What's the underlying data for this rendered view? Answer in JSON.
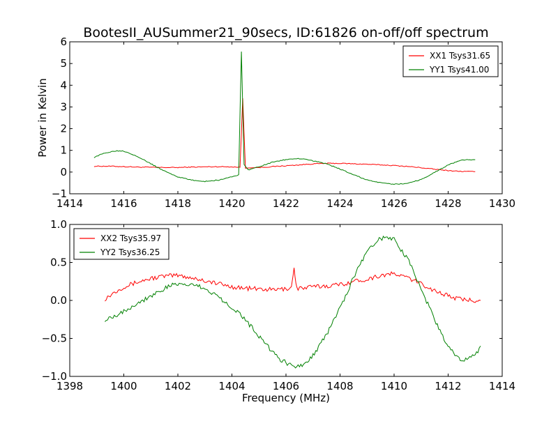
{
  "figure": {
    "title": "BootesII_AUSummer21_90secs, ID:61826 on-off/off spectrum"
  },
  "colors": {
    "xx": "#ff0000",
    "yy": "#008000",
    "axes": "#000000",
    "background": "#ffffff"
  },
  "chart_data": [
    {
      "type": "line",
      "title": "BootesII_AUSummer21_90secs, ID:61826 on-off/off spectrum",
      "xlabel": "",
      "ylabel": "Power in Kelvin",
      "xlim": [
        1414,
        1430
      ],
      "ylim": [
        -1,
        6
      ],
      "xticks": [
        1414,
        1416,
        1418,
        1420,
        1422,
        1424,
        1426,
        1428,
        1430
      ],
      "yticks": [
        -1,
        0,
        1,
        2,
        3,
        4,
        5,
        6
      ],
      "xtick_labels": [
        "1414",
        "1416",
        "1418",
        "1420",
        "1422",
        "1424",
        "1426",
        "1428",
        "1430"
      ],
      "ytick_labels": [
        "−1",
        "0",
        "1",
        "2",
        "3",
        "4",
        "5",
        "6"
      ],
      "grid": false,
      "legend_position": "top-right",
      "series": [
        {
          "name": "XX1 Tsys31.65",
          "color": "#ff0000",
          "x": [
            1414.9,
            1415.5,
            1416.0,
            1416.5,
            1417.0,
            1417.5,
            1418.0,
            1418.5,
            1419.0,
            1419.5,
            1420.0,
            1420.3,
            1420.4,
            1420.5,
            1421.0,
            1421.5,
            1422.0,
            1422.5,
            1423.0,
            1423.5,
            1424.0,
            1424.5,
            1425.0,
            1425.5,
            1426.0,
            1426.5,
            1427.0,
            1427.5,
            1428.0,
            1428.5,
            1429.0
          ],
          "y": [
            0.27,
            0.27,
            0.25,
            0.23,
            0.22,
            0.21,
            0.21,
            0.23,
            0.24,
            0.25,
            0.24,
            0.22,
            3.4,
            0.18,
            0.21,
            0.25,
            0.29,
            0.33,
            0.38,
            0.4,
            0.4,
            0.38,
            0.36,
            0.33,
            0.3,
            0.26,
            0.2,
            0.13,
            0.07,
            0.03,
            0.02
          ]
        },
        {
          "name": "YY1 Tsys41.00",
          "color": "#008000",
          "x": [
            1414.9,
            1415.3,
            1415.7,
            1416.0,
            1416.5,
            1417.0,
            1417.5,
            1418.0,
            1418.5,
            1419.0,
            1419.5,
            1420.0,
            1420.25,
            1420.35,
            1420.45,
            1420.6,
            1421.0,
            1421.5,
            1422.0,
            1422.5,
            1423.0,
            1423.5,
            1424.0,
            1424.5,
            1425.0,
            1425.5,
            1426.0,
            1426.5,
            1427.0,
            1427.5,
            1428.0,
            1428.5,
            1429.0
          ],
          "y": [
            0.68,
            0.88,
            0.98,
            0.97,
            0.73,
            0.38,
            0.05,
            -0.22,
            -0.37,
            -0.43,
            -0.37,
            -0.22,
            -0.12,
            5.55,
            0.35,
            0.1,
            0.25,
            0.45,
            0.58,
            0.62,
            0.52,
            0.38,
            0.14,
            -0.12,
            -0.36,
            -0.5,
            -0.56,
            -0.52,
            -0.34,
            -0.02,
            0.33,
            0.56,
            0.57
          ]
        }
      ]
    },
    {
      "type": "line",
      "title": "",
      "xlabel": "Frequency (MHz)",
      "ylabel": "",
      "xlim": [
        1398,
        1414
      ],
      "ylim": [
        -1.0,
        1.0
      ],
      "xticks": [
        1398,
        1400,
        1402,
        1404,
        1406,
        1408,
        1410,
        1412,
        1414
      ],
      "yticks": [
        -1.0,
        -0.5,
        0.0,
        0.5,
        1.0
      ],
      "xtick_labels": [
        "1398",
        "1400",
        "1402",
        "1404",
        "1406",
        "1408",
        "1410",
        "1412",
        "1414"
      ],
      "ytick_labels": [
        "−1.0",
        "−0.5",
        "0.0",
        "0.5",
        "1.0"
      ],
      "grid": false,
      "legend_position": "top-left",
      "series": [
        {
          "name": "XX2 Tsys35.97",
          "color": "#ff0000",
          "x": [
            1399.3,
            1399.7,
            1400.0,
            1400.5,
            1401.0,
            1401.5,
            1402.0,
            1402.5,
            1403.0,
            1403.5,
            1404.0,
            1404.5,
            1405.0,
            1405.5,
            1406.0,
            1406.2,
            1406.3,
            1406.4,
            1406.6,
            1407.0,
            1407.5,
            1408.0,
            1408.5,
            1409.0,
            1409.5,
            1410.0,
            1410.5,
            1411.0,
            1411.5,
            1412.0,
            1412.5,
            1413.2
          ],
          "y": [
            0.02,
            0.12,
            0.18,
            0.24,
            0.29,
            0.32,
            0.33,
            0.3,
            0.26,
            0.22,
            0.18,
            0.16,
            0.15,
            0.14,
            0.15,
            0.18,
            0.42,
            0.16,
            0.16,
            0.18,
            0.19,
            0.21,
            0.25,
            0.28,
            0.33,
            0.35,
            0.3,
            0.22,
            0.13,
            0.06,
            0.01,
            0.0
          ]
        },
        {
          "name": "YY2 Tsys36.25",
          "color": "#008000",
          "x": [
            1399.3,
            1399.8,
            1400.3,
            1400.8,
            1401.3,
            1401.8,
            1402.3,
            1402.8,
            1403.3,
            1403.8,
            1404.3,
            1404.8,
            1405.3,
            1405.8,
            1406.3,
            1406.6,
            1407.0,
            1407.5,
            1408.0,
            1408.5,
            1409.0,
            1409.5,
            1410.0,
            1410.5,
            1411.0,
            1411.5,
            1412.0,
            1412.5,
            1413.0,
            1413.2
          ],
          "y": [
            -0.25,
            -0.18,
            -0.08,
            0.02,
            0.12,
            0.2,
            0.22,
            0.18,
            0.1,
            -0.03,
            -0.18,
            -0.38,
            -0.6,
            -0.78,
            -0.88,
            -0.85,
            -0.72,
            -0.45,
            -0.1,
            0.3,
            0.65,
            0.82,
            0.8,
            0.55,
            0.15,
            -0.25,
            -0.62,
            -0.8,
            -0.73,
            -0.6
          ]
        }
      ]
    }
  ]
}
